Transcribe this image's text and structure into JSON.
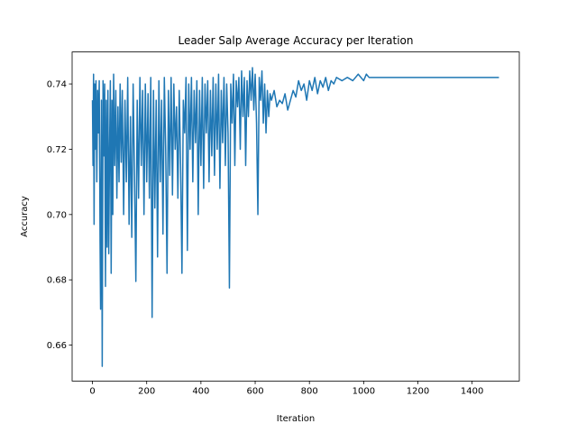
{
  "chart_data": {
    "type": "line",
    "title": "Leader Salp Average Accuracy per Iteration",
    "x_label": "Iteration",
    "y_label": "Accuracy",
    "color": "#1f77b4",
    "x": [
      0,
      2,
      4,
      6,
      8,
      10,
      13,
      16,
      19,
      22,
      25,
      28,
      30,
      33,
      36,
      39,
      42,
      45,
      48,
      51,
      54,
      57,
      60,
      63,
      66,
      69,
      72,
      75,
      78,
      82,
      86,
      90,
      94,
      98,
      102,
      106,
      110,
      115,
      120,
      125,
      130,
      135,
      140,
      145,
      150,
      155,
      160,
      165,
      170,
      175,
      180,
      185,
      190,
      195,
      200,
      205,
      210,
      215,
      220,
      225,
      230,
      235,
      240,
      245,
      250,
      255,
      260,
      265,
      270,
      275,
      280,
      285,
      290,
      295,
      300,
      305,
      310,
      315,
      320,
      325,
      330,
      335,
      340,
      345,
      350,
      355,
      360,
      365,
      370,
      375,
      380,
      385,
      390,
      395,
      400,
      405,
      410,
      415,
      420,
      425,
      430,
      435,
      440,
      445,
      450,
      455,
      460,
      465,
      470,
      475,
      480,
      485,
      490,
      495,
      500,
      505,
      510,
      515,
      520,
      525,
      530,
      535,
      540,
      545,
      550,
      555,
      560,
      565,
      570,
      575,
      580,
      585,
      590,
      595,
      600,
      605,
      610,
      615,
      620,
      625,
      630,
      635,
      640,
      645,
      650,
      655,
      660,
      670,
      680,
      690,
      700,
      710,
      720,
      730,
      740,
      750,
      760,
      770,
      780,
      790,
      800,
      810,
      820,
      830,
      840,
      850,
      860,
      870,
      880,
      890,
      900,
      920,
      940,
      960,
      980,
      1000,
      1010,
      1020,
      1040,
      1499
    ],
    "values": [
      0.735,
      0.715,
      0.743,
      0.697,
      0.74,
      0.72,
      0.741,
      0.71,
      0.738,
      0.725,
      0.741,
      0.692,
      0.671,
      0.735,
      0.6535,
      0.741,
      0.718,
      0.74,
      0.678,
      0.735,
      0.69,
      0.738,
      0.688,
      0.72,
      0.741,
      0.682,
      0.735,
      0.7,
      0.743,
      0.715,
      0.738,
      0.705,
      0.733,
      0.71,
      0.74,
      0.716,
      0.738,
      0.7,
      0.735,
      0.71,
      0.742,
      0.697,
      0.73,
      0.693,
      0.74,
      0.712,
      0.6795,
      0.735,
      0.705,
      0.742,
      0.715,
      0.738,
      0.7,
      0.74,
      0.71,
      0.737,
      0.705,
      0.742,
      0.6685,
      0.738,
      0.702,
      0.735,
      0.687,
      0.741,
      0.71,
      0.735,
      0.694,
      0.742,
      0.72,
      0.682,
      0.738,
      0.712,
      0.742,
      0.706,
      0.74,
      0.72,
      0.733,
      0.705,
      0.738,
      0.715,
      0.682,
      0.735,
      0.725,
      0.742,
      0.689,
      0.74,
      0.72,
      0.742,
      0.71,
      0.738,
      0.722,
      0.741,
      0.7,
      0.738,
      0.715,
      0.742,
      0.708,
      0.74,
      0.725,
      0.741,
      0.71,
      0.738,
      0.718,
      0.742,
      0.712,
      0.74,
      0.72,
      0.743,
      0.708,
      0.738,
      0.722,
      0.742,
      0.715,
      0.74,
      0.725,
      0.6775,
      0.74,
      0.728,
      0.743,
      0.715,
      0.741,
      0.733,
      0.742,
      0.72,
      0.744,
      0.73,
      0.742,
      0.715,
      0.741,
      0.73,
      0.744,
      0.735,
      0.745,
      0.732,
      0.743,
      0.728,
      0.7,
      0.742,
      0.735,
      0.744,
      0.728,
      0.74,
      0.725,
      0.738,
      0.73,
      0.737,
      0.735,
      0.738,
      0.733,
      0.735,
      0.734,
      0.737,
      0.732,
      0.735,
      0.738,
      0.736,
      0.741,
      0.738,
      0.74,
      0.735,
      0.741,
      0.738,
      0.742,
      0.737,
      0.741,
      0.739,
      0.742,
      0.738,
      0.741,
      0.74,
      0.742,
      0.741,
      0.742,
      0.741,
      0.743,
      0.741,
      0.743,
      0.742,
      0.742,
      0.742
    ],
    "xlim": [
      -75,
      1574
    ],
    "xticks": [
      0,
      200,
      400,
      600,
      800,
      1000,
      1200,
      1400
    ],
    "ylim": [
      0.649,
      0.7498
    ],
    "yticks": [
      0.66,
      0.68,
      {
        "value": 0.7,
        "label": "0.70"
      },
      0.72,
      0.74
    ]
  }
}
